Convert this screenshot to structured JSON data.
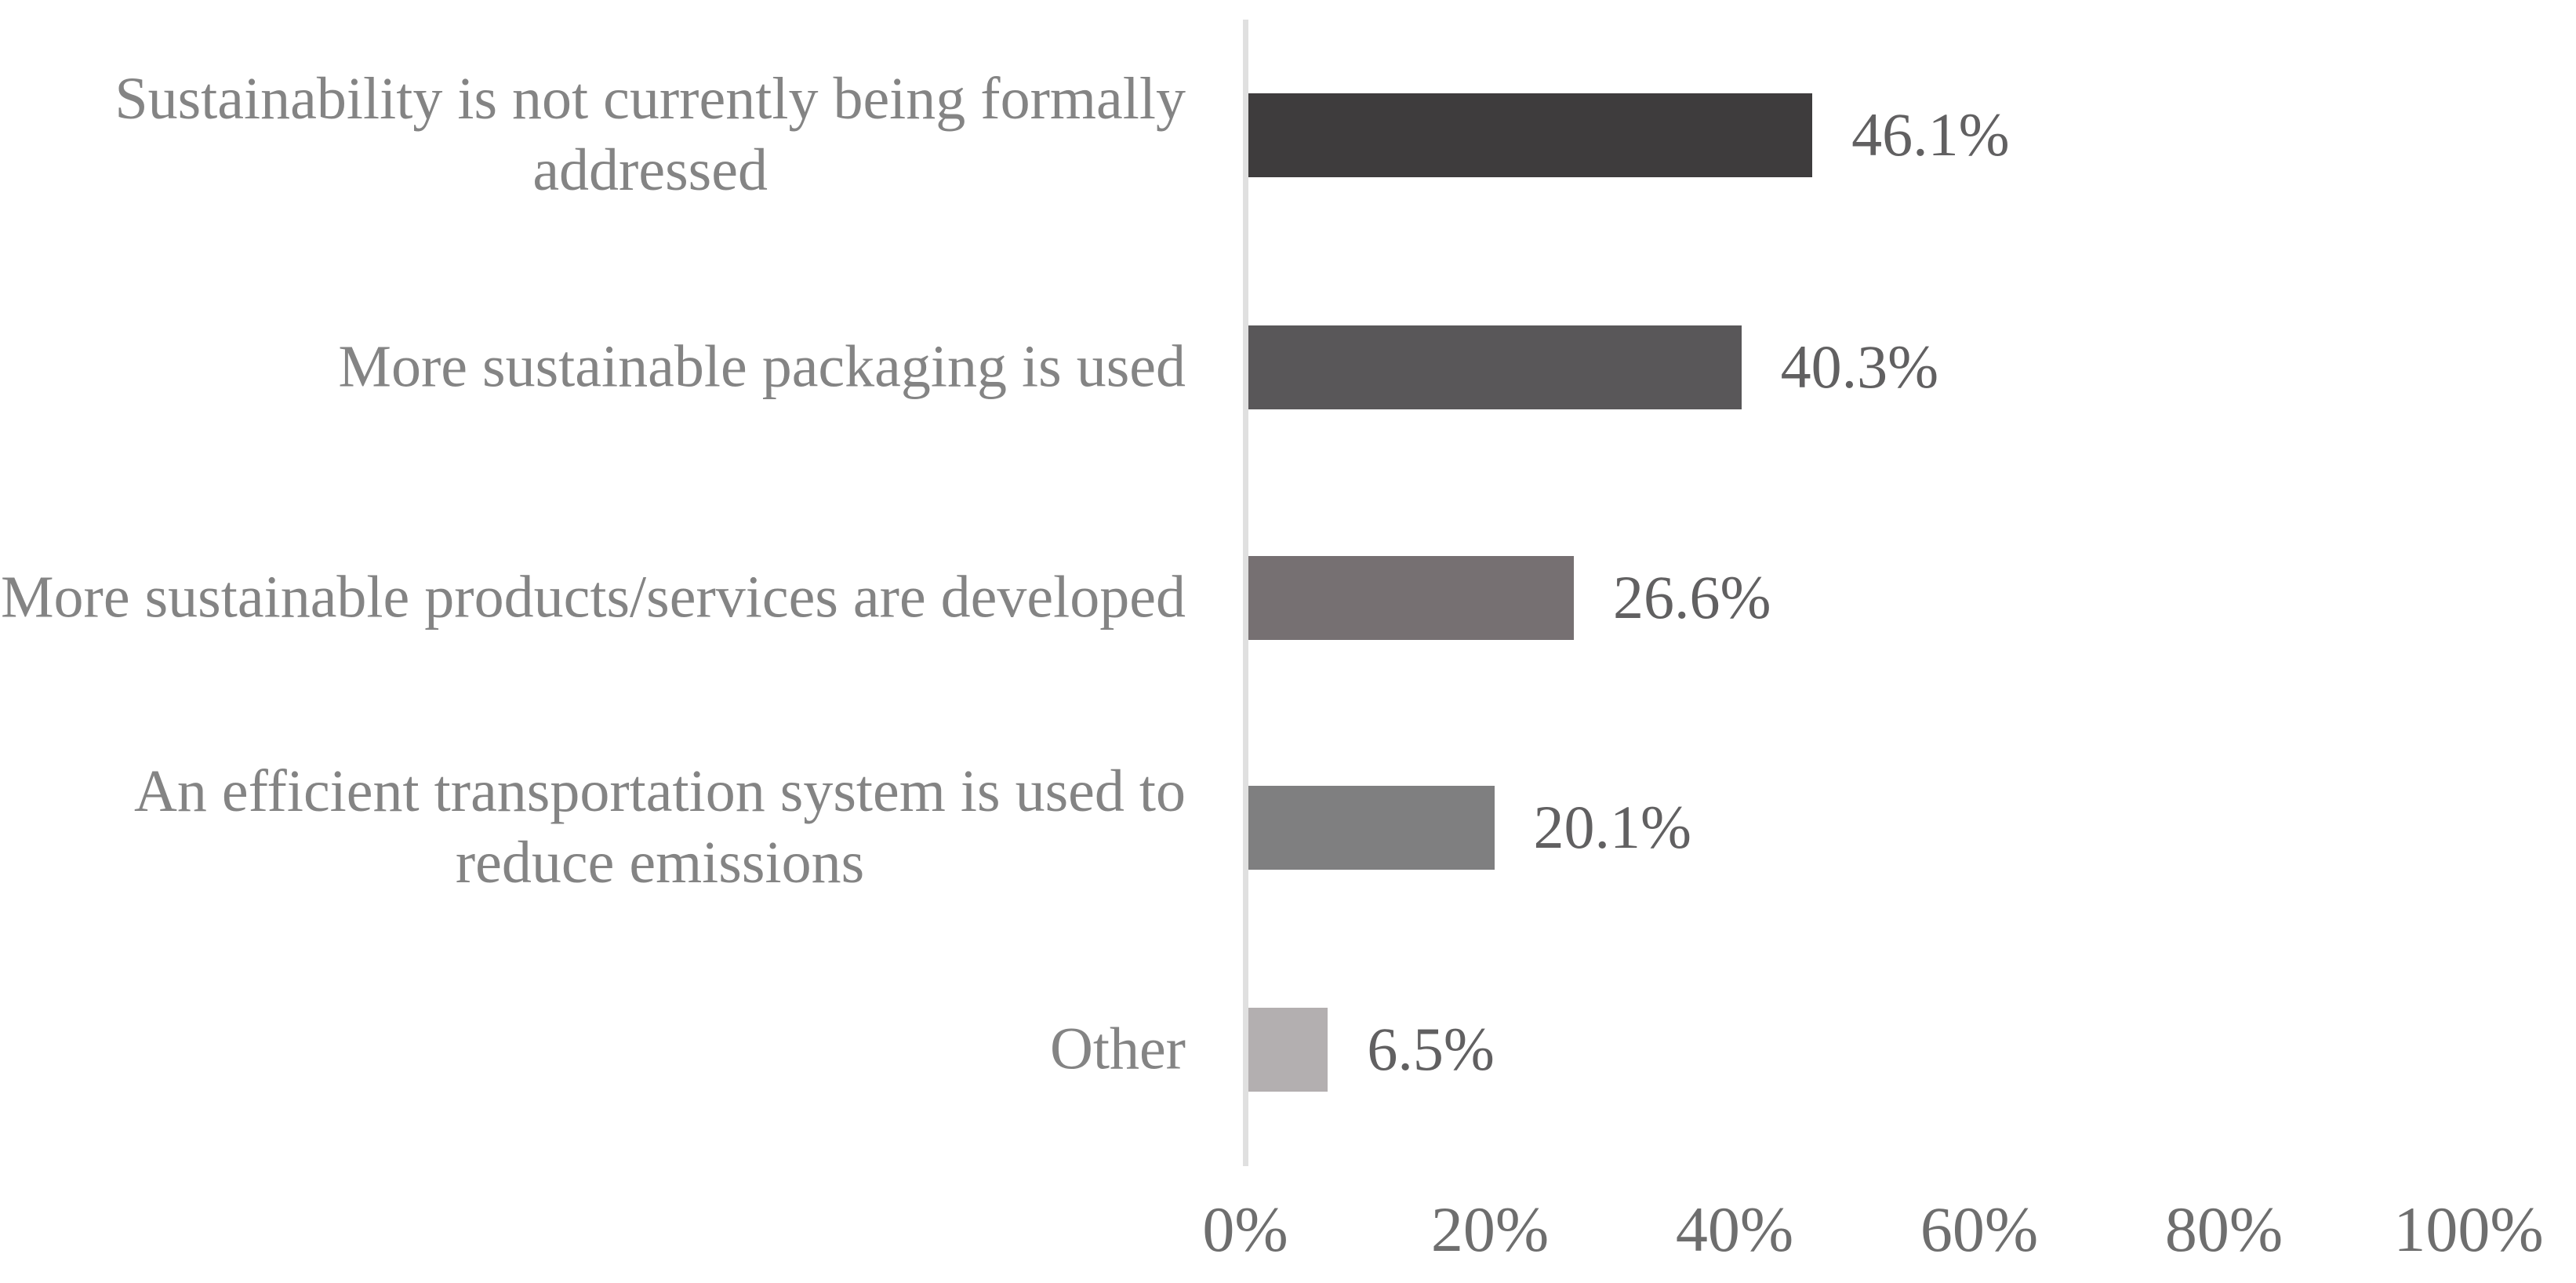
{
  "chart_data": {
    "type": "bar",
    "orientation": "horizontal",
    "title": "",
    "xlabel": "",
    "ylabel": "",
    "grid": "off",
    "legend": "none",
    "background": "#ffffff",
    "axis_line_color": "#e0e0e0",
    "category_label_color": "#848484",
    "value_label_color": "#616061",
    "tick_label_color": "#6e6e6e",
    "categories": [
      "Sustainability is not currently being formally\naddressed",
      "More sustainable packaging is used",
      "More sustainable products/services are developed",
      "An efficient transportation system is used to\nreduce emissions",
      "Other"
    ],
    "values": [
      46.1,
      40.3,
      26.6,
      20.1,
      6.5
    ],
    "value_labels": [
      "46.1%",
      "40.3%",
      "26.6%",
      "20.1%",
      "6.5%"
    ],
    "bar_colors": [
      "#3e3c3d",
      "#595759",
      "#767072",
      "#7f7f80",
      "#b3afb0"
    ],
    "x_axis": {
      "min": 0,
      "max": 100,
      "step": 20,
      "tick_labels": [
        "0%",
        "20%",
        "40%",
        "60%",
        "80%",
        "100%"
      ]
    }
  }
}
